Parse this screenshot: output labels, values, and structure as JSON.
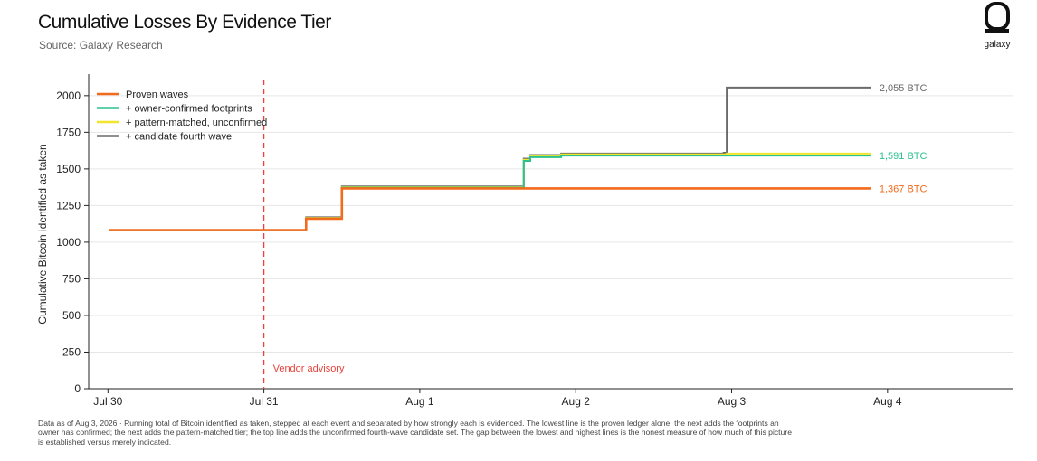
{
  "title": "Cumulative Losses By Evidence Tier",
  "subtitle": "Source: Galaxy Research",
  "brand": {
    "name": "galaxy",
    "logo_icon": "galaxy-logo-icon"
  },
  "footnote": "Data as of Aug 3, 2026 · Running total of Bitcoin identified as taken, stepped at each event and separated by how strongly each is evidenced. The lowest line is the proven ledger alone; the next adds the footprints an owner has confirmed; the next adds the pattern-matched tier; the top line adds the unconfirmed fourth-wave candidate set. The gap between the lowest and highest lines is the honest measure of how much of this picture is established versus merely indicated.",
  "chart_data": {
    "type": "line",
    "title": "Cumulative Losses By Evidence Tier",
    "subtitle": "Source: Galaxy Research",
    "xlabel": "",
    "ylabel": "Cumulative Bitcoin identified as taken",
    "x_ticks": [
      "Jul 30",
      "Jul 31",
      "Aug 1",
      "Aug 2",
      "Aug 3",
      "Aug 4"
    ],
    "y_ticks": [
      0,
      250,
      500,
      750,
      1000,
      1250,
      1500,
      1750,
      2000
    ],
    "xlim": [
      "Jul 29 21:02",
      "Aug 4 19:23"
    ],
    "ylim": [
      0,
      2110
    ],
    "grid": "horizontal",
    "legend_position": "top-left",
    "step": "post",
    "series": [
      {
        "name": "+ candidate fourth wave",
        "color": "#6b6b6b",
        "points": [
          [
            "Jul 30 00:11",
            1082
          ],
          [
            "Jul 31 05:00",
            1082
          ],
          [
            "Jul 31 06:30",
            1170
          ],
          [
            "Jul 31 12:00",
            1380
          ],
          [
            "Aug 1 16:00",
            1570
          ],
          [
            "Aug 1 17:00",
            1595
          ],
          [
            "Aug 1 21:45",
            1605
          ],
          [
            "Aug 2 22:45",
            1610
          ],
          [
            "Aug 2 23:15",
            2055
          ],
          [
            "Aug 3 21:30",
            2055
          ]
        ],
        "end_label": "2,055 BTC"
      },
      {
        "name": "+ pattern-matched, unconfirmed",
        "color": "#f2e62a",
        "points": [
          [
            "Jul 30 00:11",
            1082
          ],
          [
            "Jul 31 05:00",
            1082
          ],
          [
            "Jul 31 06:30",
            1165
          ],
          [
            "Jul 31 12:00",
            1375
          ],
          [
            "Aug 1 16:00",
            1562
          ],
          [
            "Aug 1 17:00",
            1590
          ],
          [
            "Aug 1 21:45",
            1600
          ],
          [
            "Aug 2 23:15",
            1605
          ],
          [
            "Aug 3 21:30",
            1605
          ]
        ]
      },
      {
        "name": "+ owner-confirmed footprints",
        "color": "#2bc28f",
        "points": [
          [
            "Jul 30 00:11",
            1082
          ],
          [
            "Jul 31 05:00",
            1082
          ],
          [
            "Jul 31 06:30",
            1160
          ],
          [
            "Jul 31 12:00",
            1372
          ],
          [
            "Aug 1 16:00",
            1555
          ],
          [
            "Aug 1 17:00",
            1580
          ],
          [
            "Aug 1 21:45",
            1591
          ],
          [
            "Aug 3 21:30",
            1591
          ]
        ],
        "end_label": "1,591 BTC"
      },
      {
        "name": "Proven waves",
        "color": "#f26a1b",
        "points": [
          [
            "Jul 30 00:11",
            1082
          ],
          [
            "Jul 31 05:00",
            1082
          ],
          [
            "Jul 31 06:30",
            1160
          ],
          [
            "Jul 31 12:00",
            1367
          ],
          [
            "Aug 3 21:30",
            1367
          ]
        ],
        "end_label": "1,367 BTC"
      }
    ],
    "annotations": [
      {
        "type": "vline",
        "x": "Jul 31 00:00",
        "color": "#e8423a",
        "style": "dashed",
        "label": "Vendor advisory"
      }
    ],
    "legend_order": [
      "Proven waves",
      "+ owner-confirmed footprints",
      "+ pattern-matched, unconfirmed",
      "+ candidate fourth wave"
    ]
  }
}
